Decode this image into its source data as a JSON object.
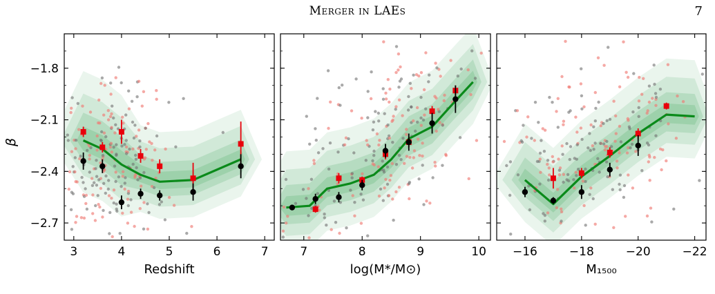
{
  "header": {
    "running_title": "Merger in LAEs",
    "page_number": "7"
  },
  "figure": {
    "ylabel": "β",
    "y_ticks": [
      "−1.8",
      "−2.1",
      "−2.4",
      "−2.7"
    ],
    "colors": {
      "red": "#e8000b",
      "black": "#000000",
      "line": "#0a8a1a",
      "contour": "#2e9e4a"
    }
  },
  "chart_data": [
    {
      "type": "scatter",
      "xlabel": "Redshift",
      "ylabel": "β",
      "xlim": [
        2.8,
        7.2
      ],
      "ylim": [
        -2.8,
        -1.6
      ],
      "x_ticks": [
        3,
        4,
        5,
        6,
        7
      ],
      "x_tick_labels": [
        "3",
        "4",
        "5",
        "6",
        "7"
      ],
      "y_ticks": [
        -1.8,
        -2.1,
        -2.4,
        -2.7
      ],
      "series": [
        {
          "style": "red-square",
          "x": [
            3.2,
            3.6,
            4.0,
            4.4,
            4.8,
            5.5,
            6.5
          ],
          "y": [
            -2.17,
            -2.26,
            -2.17,
            -2.31,
            -2.37,
            -2.44,
            -2.24
          ],
          "yerr": [
            0.03,
            0.03,
            0.07,
            0.04,
            0.04,
            0.09,
            0.13
          ]
        },
        {
          "style": "black-circle",
          "x": [
            3.2,
            3.6,
            4.0,
            4.4,
            4.8,
            5.5,
            6.5
          ],
          "y": [
            -2.34,
            -2.37,
            -2.58,
            -2.53,
            -2.54,
            -2.52,
            -2.37
          ],
          "yerr": [
            0.05,
            0.04,
            0.04,
            0.03,
            0.03,
            0.05,
            0.07
          ]
        },
        {
          "style": "green-line",
          "x": [
            3.2,
            3.6,
            4.0,
            4.4,
            4.8,
            5.5,
            6.5
          ],
          "y": [
            -2.22,
            -2.27,
            -2.36,
            -2.42,
            -2.46,
            -2.45,
            -2.33
          ]
        }
      ]
    },
    {
      "type": "scatter",
      "xlabel": "log(M*/M⊙)",
      "ylabel": "",
      "xlim": [
        6.6,
        10.2
      ],
      "ylim": [
        -2.8,
        -1.6
      ],
      "x_ticks": [
        7,
        8,
        9,
        10
      ],
      "x_tick_labels": [
        "7",
        "8",
        "9",
        "10"
      ],
      "y_ticks": [
        -1.8,
        -2.1,
        -2.4,
        -2.7
      ],
      "series": [
        {
          "style": "red-square",
          "x": [
            7.2,
            7.6,
            8.0,
            8.4,
            8.8,
            9.2,
            9.6
          ],
          "y": [
            -2.62,
            -2.44,
            -2.45,
            -2.3,
            -2.23,
            -2.05,
            -1.93
          ],
          "yerr": [
            0.02,
            0.03,
            0.02,
            0.03,
            0.03,
            0.03,
            0.03
          ]
        },
        {
          "style": "black-circle",
          "x": [
            6.8,
            7.2,
            7.6,
            8.0,
            8.4,
            8.8,
            9.2,
            9.6
          ],
          "y": [
            -2.61,
            -2.56,
            -2.55,
            -2.48,
            -2.28,
            -2.23,
            -2.12,
            -1.98
          ],
          "yerr": [
            0.01,
            0.03,
            0.03,
            0.03,
            0.04,
            0.05,
            0.06,
            0.08
          ]
        },
        {
          "style": "green-line",
          "x": [
            6.7,
            7.1,
            7.4,
            7.8,
            8.2,
            8.5,
            8.8,
            9.2,
            9.6,
            9.9
          ],
          "y": [
            -2.61,
            -2.6,
            -2.5,
            -2.47,
            -2.42,
            -2.33,
            -2.21,
            -2.14,
            -1.99,
            -1.88
          ]
        }
      ]
    },
    {
      "type": "scatter",
      "xlabel": "M₁₅₀₀",
      "ylabel": "",
      "xlim": [
        -15.0,
        -22.4
      ],
      "ylim": [
        -2.8,
        -1.6
      ],
      "x_ticks": [
        -16,
        -18,
        -20,
        -22
      ],
      "x_tick_labels": [
        "−16",
        "−18",
        "−20",
        "−22"
      ],
      "y_ticks": [
        -1.8,
        -2.1,
        -2.4,
        -2.7
      ],
      "series": [
        {
          "style": "red-square",
          "x": [
            -17,
            -18,
            -19,
            -20,
            -21
          ],
          "y": [
            -2.44,
            -2.41,
            -2.29,
            -2.18,
            -2.02
          ],
          "yerr": [
            0.06,
            0.03,
            0.03,
            0.03,
            0.02
          ]
        },
        {
          "style": "black-circle",
          "x": [
            -16,
            -17,
            -18,
            -19,
            -20
          ],
          "y": [
            -2.52,
            -2.57,
            -2.52,
            -2.39,
            -2.25
          ],
          "yerr": [
            0.03,
            0.02,
            0.04,
            0.04,
            0.06
          ]
        },
        {
          "style": "green-line",
          "x": [
            -16,
            -17,
            -18,
            -19,
            -20,
            -21,
            -22
          ],
          "y": [
            -2.45,
            -2.59,
            -2.43,
            -2.31,
            -2.18,
            -2.07,
            -2.08
          ]
        }
      ]
    }
  ]
}
